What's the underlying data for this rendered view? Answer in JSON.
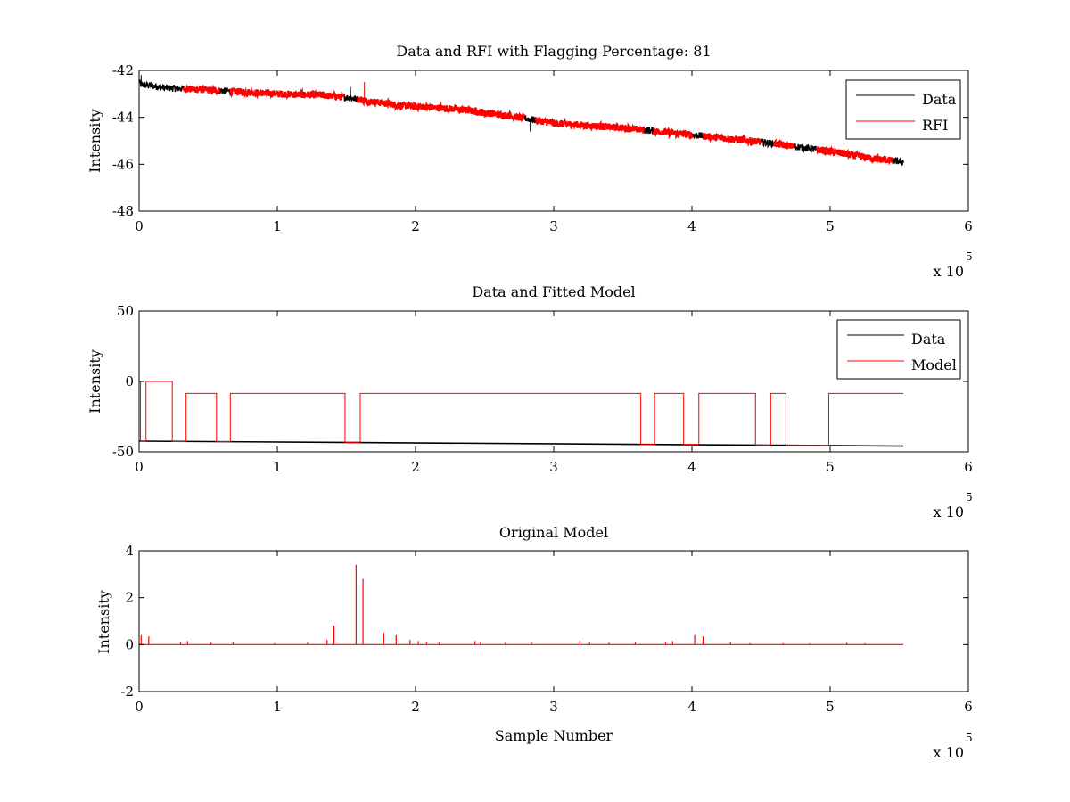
{
  "figure": {
    "background": "#ffffff",
    "colors": {
      "data": "#000000",
      "rfi": "#ff0000",
      "model": "#ff0000"
    }
  },
  "chart_data": [
    {
      "type": "line",
      "title": "Data and RFI with Flagging Percentage: 81",
      "xlabel": "",
      "ylabel": "Intensity",
      "xlim": [
        0,
        600000
      ],
      "ylim": [
        -48,
        -42
      ],
      "xticks": [
        0,
        100000,
        200000,
        300000,
        400000,
        500000,
        600000
      ],
      "xtick_labels": [
        "0",
        "1",
        "2",
        "3",
        "4",
        "5",
        "6"
      ],
      "yticks": [
        -48,
        -46,
        -44,
        -42
      ],
      "ytick_labels": [
        "-48",
        "-46",
        "-44",
        "-42"
      ],
      "x_exponent": {
        "base": "x 10",
        "power": "5"
      },
      "legend": {
        "position": "top-right",
        "entries": [
          "Data",
          "RFI"
        ]
      },
      "series": [
        {
          "name": "Data",
          "color": "#000000",
          "trend_x": [
            0,
            1000,
            8000,
            20000,
            40000,
            70000,
            100000,
            130000,
            150000,
            165000,
            190000,
            230000,
            270000,
            300000,
            350000,
            400000,
            450000,
            500000,
            530000,
            553000
          ],
          "trend_y": [
            -42.45,
            -42.6,
            -42.65,
            -42.75,
            -42.8,
            -42.9,
            -43.0,
            -43.05,
            -43.15,
            -43.3,
            -43.5,
            -43.65,
            -43.95,
            -44.25,
            -44.45,
            -44.75,
            -45.05,
            -45.45,
            -45.75,
            -45.9
          ],
          "noise_amplitude": 0.15,
          "spikes": [
            {
              "x": 1500,
              "y": -42.2
            },
            {
              "x": 153000,
              "y": -42.7
            },
            {
              "x": 163000,
              "y": -42.5
            },
            {
              "x": 283000,
              "y": -44.6
            }
          ]
        },
        {
          "name": "RFI",
          "color": "#ff0000",
          "flagged_ranges": [
            [
              32000,
              58000
            ],
            [
              66000,
              148000
            ],
            [
              158000,
              279000
            ],
            [
              287000,
              365000
            ],
            [
              372000,
              400000
            ],
            [
              408000,
              450000
            ],
            [
              459000,
              474000
            ],
            [
              490000,
              545000
            ]
          ]
        }
      ]
    },
    {
      "type": "line",
      "title": "Data and Fitted Model",
      "xlabel": "",
      "ylabel": "Intensity",
      "xlim": [
        0,
        600000
      ],
      "ylim": [
        -50,
        50
      ],
      "xticks": [
        0,
        100000,
        200000,
        300000,
        400000,
        500000,
        600000
      ],
      "xtick_labels": [
        "0",
        "1",
        "2",
        "3",
        "4",
        "5",
        "6"
      ],
      "yticks": [
        -50,
        0,
        50
      ],
      "ytick_labels": [
        "-50",
        "0",
        "50"
      ],
      "x_exponent": {
        "base": "x 10",
        "power": "5"
      },
      "legend": {
        "position": "top-right",
        "entries": [
          "Data",
          "Model"
        ]
      },
      "series": [
        {
          "name": "Data",
          "color": "#000000",
          "x": [
            0,
            553000
          ],
          "y": [
            -42.4,
            -45.9
          ]
        },
        {
          "name": "Model",
          "color": "#ff0000",
          "x": [
            0,
            1000,
            1000,
            5000,
            5000,
            24000,
            24000,
            34000,
            34000,
            56000,
            56000,
            66000,
            66000,
            149000,
            149000,
            160000,
            160000,
            363000,
            363000,
            373000,
            373000,
            394000,
            394000,
            405000,
            405000,
            446000,
            446000,
            457000,
            457000,
            468000,
            468000,
            499000,
            499000,
            553000
          ],
          "y": [
            0,
            0,
            -42.5,
            -42.5,
            0,
            0,
            -42.7,
            -42.7,
            -8.5,
            -8.5,
            -42.8,
            -42.8,
            -8.5,
            -8.5,
            -43.2,
            -43.2,
            -8.5,
            -8.5,
            -44.8,
            -44.8,
            -8.5,
            -8.5,
            -44.8,
            -44.8,
            -8.5,
            -8.5,
            -45.2,
            -45.2,
            -8.5,
            -8.5,
            -45.4,
            -45.4,
            -8.5,
            -8.5
          ]
        }
      ]
    },
    {
      "type": "line",
      "title": "Original Model",
      "xlabel": "Sample Number",
      "ylabel": "Intensity",
      "xlim": [
        0,
        600000
      ],
      "ylim": [
        -2,
        4
      ],
      "xticks": [
        0,
        100000,
        200000,
        300000,
        400000,
        500000,
        600000
      ],
      "xtick_labels": [
        "0",
        "1",
        "2",
        "3",
        "4",
        "5",
        "6"
      ],
      "yticks": [
        -2,
        0,
        2,
        4
      ],
      "ytick_labels": [
        "-2",
        "0",
        "2",
        "4"
      ],
      "x_exponent": {
        "base": "x 10",
        "power": "5"
      },
      "series": [
        {
          "name": "Model",
          "color": "#ff0000",
          "baseline": 0,
          "x_end": 553000,
          "spikes": [
            {
              "x": 1500,
              "y": 0.4
            },
            {
              "x": 7000,
              "y": 0.35
            },
            {
              "x": 30000,
              "y": 0.1
            },
            {
              "x": 35000,
              "y": 0.15
            },
            {
              "x": 52000,
              "y": 0.08
            },
            {
              "x": 68000,
              "y": 0.1
            },
            {
              "x": 98000,
              "y": 0.06
            },
            {
              "x": 122000,
              "y": 0.08
            },
            {
              "x": 136000,
              "y": 0.2
            },
            {
              "x": 141000,
              "y": 0.8
            },
            {
              "x": 157000,
              "y": 3.4
            },
            {
              "x": 162000,
              "y": 2.8
            },
            {
              "x": 177000,
              "y": 0.5
            },
            {
              "x": 186000,
              "y": 0.4
            },
            {
              "x": 196000,
              "y": 0.2
            },
            {
              "x": 202000,
              "y": 0.15
            },
            {
              "x": 208000,
              "y": 0.1
            },
            {
              "x": 217000,
              "y": 0.1
            },
            {
              "x": 243000,
              "y": 0.15
            },
            {
              "x": 247000,
              "y": 0.12
            },
            {
              "x": 265000,
              "y": 0.08
            },
            {
              "x": 284000,
              "y": 0.1
            },
            {
              "x": 319000,
              "y": 0.15
            },
            {
              "x": 326000,
              "y": 0.12
            },
            {
              "x": 340000,
              "y": 0.08
            },
            {
              "x": 359000,
              "y": 0.1
            },
            {
              "x": 381000,
              "y": 0.12
            },
            {
              "x": 386000,
              "y": 0.15
            },
            {
              "x": 402000,
              "y": 0.4
            },
            {
              "x": 408000,
              "y": 0.35
            },
            {
              "x": 428000,
              "y": 0.1
            },
            {
              "x": 442000,
              "y": 0.06
            },
            {
              "x": 466000,
              "y": 0.06
            },
            {
              "x": 485000,
              "y": 0.05
            },
            {
              "x": 512000,
              "y": 0.08
            },
            {
              "x": 525000,
              "y": 0.06
            }
          ]
        }
      ]
    }
  ]
}
